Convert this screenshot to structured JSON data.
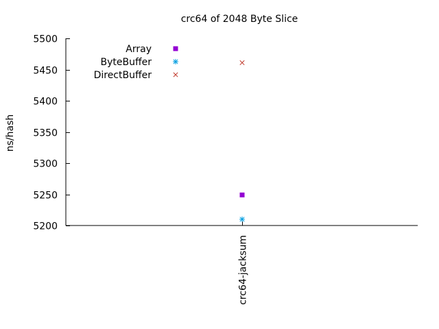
{
  "chart_data": {
    "type": "scatter",
    "title": "crc64 of 2048 Byte Slice",
    "xlabel": "",
    "ylabel": "ns/hash",
    "categories": [
      "crc64-jacksum"
    ],
    "ylim": [
      5200,
      5500
    ],
    "yticks": [
      5200,
      5250,
      5300,
      5350,
      5400,
      5450,
      5500
    ],
    "grid": false,
    "legend_position": "top-left",
    "series": [
      {
        "name": "Array",
        "marker": "filled-square",
        "color": "#9400d3",
        "values": [
          5249
        ]
      },
      {
        "name": "ByteBuffer",
        "marker": "asterisk",
        "color": "#009ee0",
        "values": [
          5210
        ]
      },
      {
        "name": "DirectBuffer",
        "marker": "cross",
        "color": "#c0392b",
        "values": [
          5461
        ]
      }
    ]
  }
}
